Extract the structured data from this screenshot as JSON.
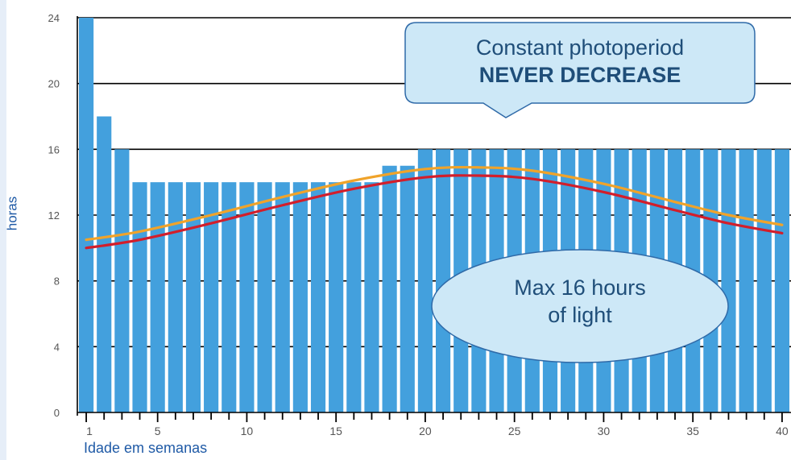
{
  "chart_data": {
    "type": "bar",
    "ylabel": "horas",
    "xlabel": "Idade em semanas",
    "ylim": [
      0,
      24
    ],
    "yticks": [
      0,
      4,
      8,
      12,
      16,
      20,
      24
    ],
    "xticks": [
      1,
      5,
      10,
      15,
      20,
      25,
      30,
      35,
      40
    ],
    "grid": "horizontal",
    "x": [
      1,
      2,
      3,
      4,
      5,
      6,
      7,
      8,
      9,
      10,
      11,
      12,
      13,
      14,
      15,
      16,
      17,
      18,
      19,
      20,
      21,
      22,
      23,
      24,
      25,
      26,
      27,
      28,
      29,
      30,
      31,
      32,
      33,
      34,
      35,
      36,
      37,
      38,
      39,
      40
    ],
    "values": [
      24,
      18,
      16,
      14,
      14,
      14,
      14,
      14,
      14,
      14,
      14,
      14,
      14,
      14,
      14,
      14,
      14,
      15,
      15,
      16,
      16,
      16,
      16,
      16,
      16,
      16,
      16,
      16,
      16,
      16,
      16,
      16,
      16,
      16,
      16,
      16,
      16,
      16,
      16,
      16
    ],
    "bar_color": "#43a0dd",
    "lines": [
      {
        "color": "#f0a32a",
        "x": [
          1,
          4,
          8,
          12,
          16,
          20,
          23,
          26,
          30,
          34,
          37,
          40
        ],
        "y": [
          10.5,
          11.0,
          12.0,
          13.1,
          14.1,
          14.8,
          14.9,
          14.7,
          13.9,
          12.8,
          12.0,
          11.4
        ]
      },
      {
        "color": "#d21e2b",
        "x": [
          1,
          4,
          8,
          12,
          16,
          20,
          23,
          26,
          30,
          34,
          37,
          40
        ],
        "y": [
          10.0,
          10.5,
          11.5,
          12.6,
          13.6,
          14.3,
          14.4,
          14.2,
          13.4,
          12.3,
          11.5,
          10.9
        ]
      }
    ],
    "annotations": [
      {
        "line1": "Constant photoperiod",
        "line2": "NEVER DECREASE"
      },
      {
        "line1": "Max 16 hours",
        "line2": "of light"
      }
    ]
  }
}
